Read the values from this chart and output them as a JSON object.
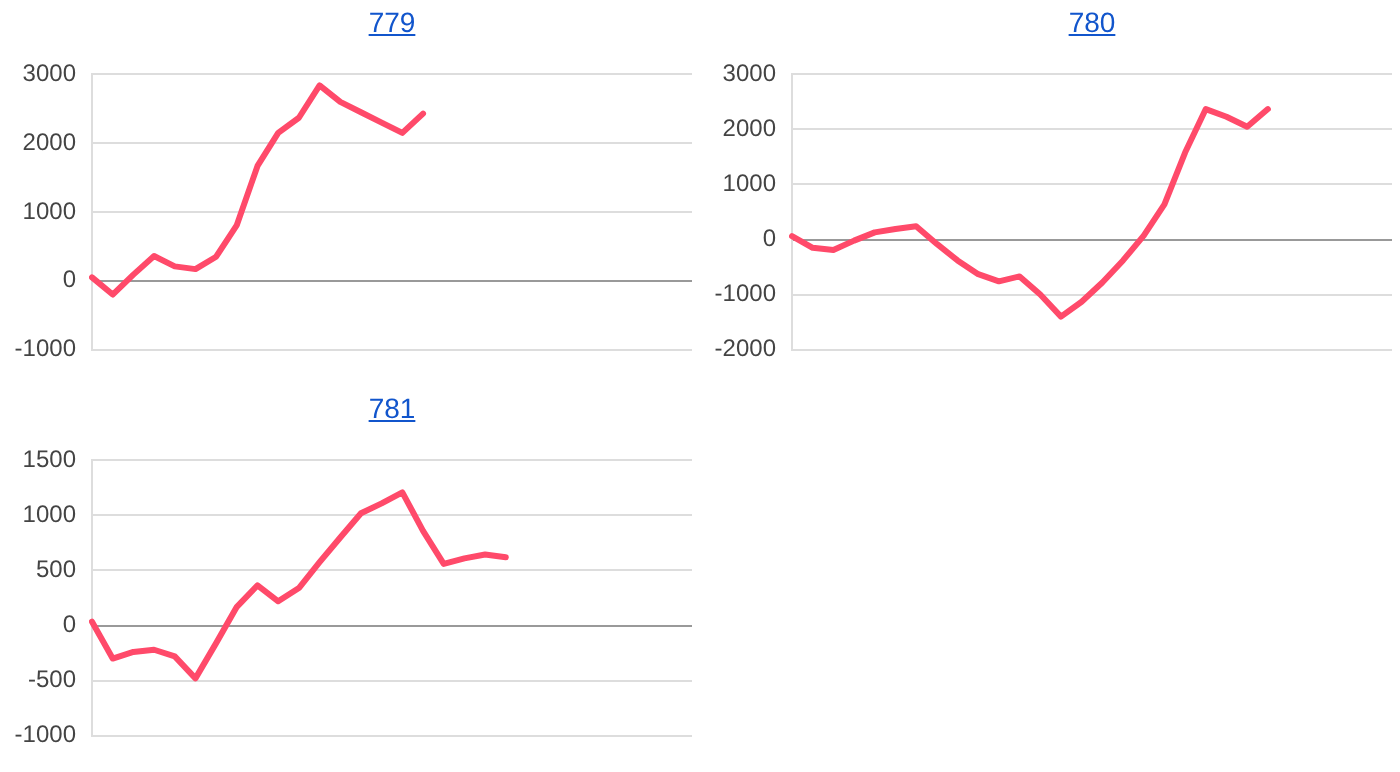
{
  "chart_data": [
    {
      "type": "line",
      "title": "779",
      "categories": [
        null,
        null,
        null,
        null,
        null,
        null,
        null,
        null,
        null,
        null,
        null,
        null,
        null,
        null,
        null,
        null,
        null,
        null,
        null,
        null,
        null,
        null,
        null,
        null,
        null,
        null,
        null,
        null,
        null,
        null
      ],
      "values": [
        50,
        -200,
        90,
        360,
        210,
        170,
        350,
        810,
        1670,
        2150,
        2370,
        2840,
        2600,
        2450,
        2300,
        2150,
        2430,
        null,
        null,
        null,
        null,
        null,
        null,
        null,
        null,
        null,
        null,
        null,
        null,
        null
      ],
      "color": "#ff4a6a",
      "ylim": [
        -1000,
        3000
      ],
      "yticks": [
        -1000,
        0,
        1000,
        2000,
        3000
      ],
      "grid": "y",
      "tick_labels": "y",
      "marker": "none"
    },
    {
      "type": "line",
      "title": "780",
      "categories": [
        null,
        null,
        null,
        null,
        null,
        null,
        null,
        null,
        null,
        null,
        null,
        null,
        null,
        null,
        null,
        null,
        null,
        null,
        null,
        null,
        null,
        null,
        null,
        null,
        null,
        null,
        null,
        null,
        null,
        null
      ],
      "values": [
        60,
        -150,
        -190,
        -20,
        130,
        190,
        240,
        -80,
        -380,
        -630,
        -760,
        -670,
        -1000,
        -1400,
        -1130,
        -780,
        -380,
        70,
        640,
        1580,
        2370,
        2230,
        2050,
        2370,
        null,
        null,
        null,
        null,
        null,
        null
      ],
      "color": "#ff4a6a",
      "ylim": [
        -2000,
        3000
      ],
      "yticks": [
        -2000,
        -1000,
        0,
        1000,
        2000,
        3000
      ],
      "grid": "y",
      "tick_labels": "y",
      "marker": "none"
    },
    {
      "type": "line",
      "title": "781",
      "categories": [
        null,
        null,
        null,
        null,
        null,
        null,
        null,
        null,
        null,
        null,
        null,
        null,
        null,
        null,
        null,
        null,
        null,
        null,
        null,
        null,
        null,
        null,
        null,
        null,
        null,
        null,
        null,
        null,
        null,
        null
      ],
      "values": [
        35,
        -300,
        -240,
        -220,
        -280,
        -480,
        -160,
        170,
        365,
        220,
        340,
        575,
        800,
        1020,
        1110,
        1210,
        860,
        560,
        610,
        645,
        620,
        null,
        null,
        null,
        null,
        null,
        null,
        null,
        null,
        null
      ],
      "color": "#ff4a6a",
      "ylim": [
        -1000,
        1500
      ],
      "yticks": [
        -1000,
        -500,
        0,
        500,
        1000,
        1500
      ],
      "grid": "y",
      "tick_labels": "y",
      "marker": "none"
    }
  ]
}
